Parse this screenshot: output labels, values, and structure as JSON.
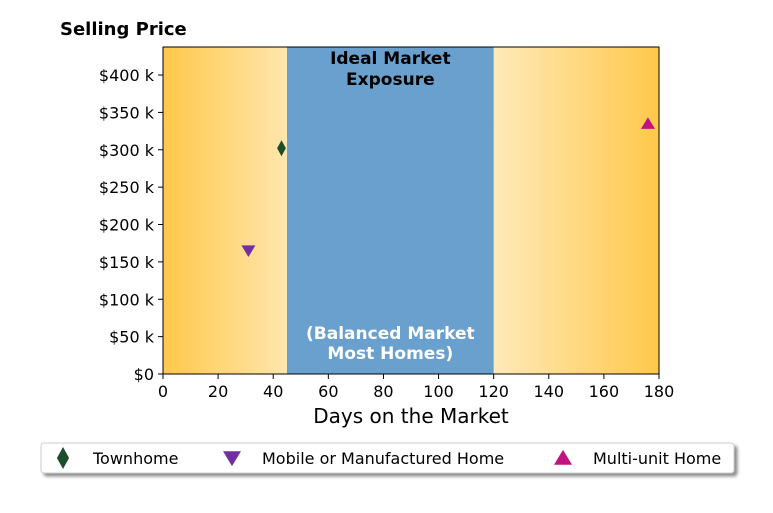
{
  "chart_data": {
    "type": "scatter",
    "ylabel": "Selling Price",
    "xlabel": "Days on the Market",
    "xlim": [
      0,
      180
    ],
    "ylim": [
      0,
      437500
    ],
    "x_ticks": [
      0,
      20,
      40,
      60,
      80,
      100,
      120,
      140,
      160,
      180
    ],
    "x_tick_labels": [
      "0",
      "20",
      "40",
      "60",
      "80",
      "100",
      "120",
      "140",
      "160",
      "180"
    ],
    "y_ticks": [
      0,
      50000,
      100000,
      150000,
      200000,
      250000,
      300000,
      350000,
      400000
    ],
    "y_tick_labels": [
      "$0",
      "$50 k",
      "$100 k",
      "$150 k",
      "$200 k",
      "$250 k",
      "$300 k",
      "$350 k",
      "$400 k"
    ],
    "grid": false,
    "background_gradient": {
      "edge_color": "#ffc84a",
      "center_color": "#ffffff",
      "center_x": 82
    },
    "band": {
      "x_start": 45,
      "x_end": 120,
      "color": "#6aa0cd",
      "label_top": [
        "Ideal Market",
        "Exposure"
      ],
      "label_bottom": [
        "(Balanced Market",
        "Most Homes)"
      ]
    },
    "series": [
      {
        "name": "Townhome",
        "marker": "diamond",
        "color": "#1e4d2b",
        "points": [
          {
            "x": 43,
            "y": 302000
          }
        ]
      },
      {
        "name": "Mobile or Manufactured Home",
        "marker": "triangle-down",
        "color": "#7030a0",
        "points": [
          {
            "x": 31,
            "y": 165000
          }
        ]
      },
      {
        "name": "Multi-unit Home",
        "marker": "triangle-up",
        "color": "#c0137f",
        "points": [
          {
            "x": 176,
            "y": 335000
          }
        ]
      }
    ],
    "legend_position": "bottom"
  }
}
